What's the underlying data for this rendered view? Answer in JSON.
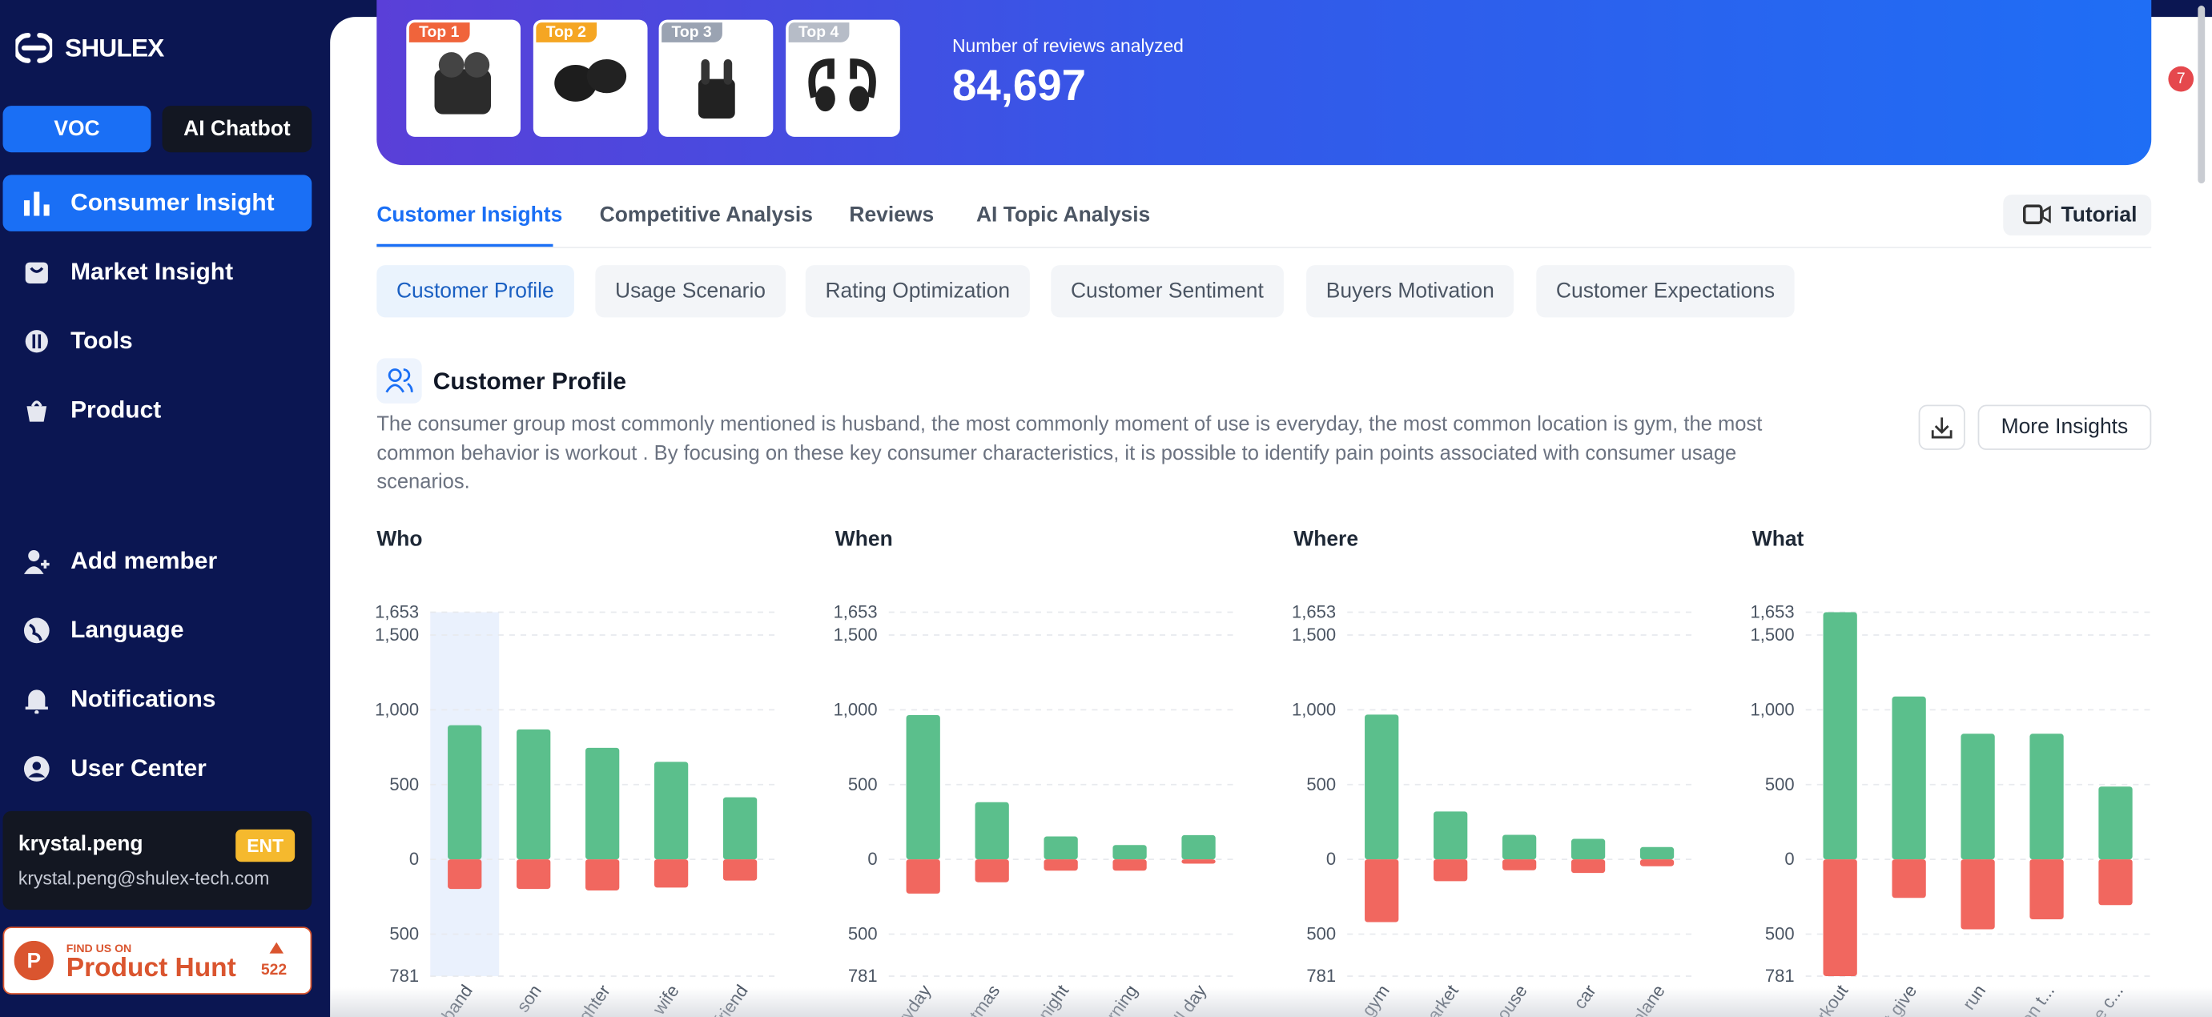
{
  "sidebar": {
    "logo": "SHULEX",
    "modes": [
      "VOC",
      "AI Chatbot"
    ],
    "nav": [
      "Consumer Insight",
      "Market Insight",
      "Tools",
      "Product"
    ],
    "bottom_nav": [
      "Add member",
      "Language",
      "Notifications",
      "User Center"
    ],
    "user": {
      "name": "krystal.peng",
      "plan": "ENT",
      "email": "krystal.peng@shulex-tech.com"
    },
    "product_hunt": {
      "caption": "FIND US ON",
      "name": "Product Hunt",
      "votes": 522
    }
  },
  "banner": {
    "tops": [
      "Top 1",
      "Top 2",
      "Top 3",
      "Top 4"
    ],
    "reviews_label": "Number of reviews analyzed",
    "reviews_count": "84,697"
  },
  "tabs": [
    "Customer Insights",
    "Competitive Analysis",
    "Reviews",
    "AI Topic Analysis"
  ],
  "tutorial": "Tutorial",
  "subtabs": [
    "Customer Profile",
    "Usage Scenario",
    "Rating Optimization",
    "Customer Sentiment",
    "Buyers Motivation",
    "Customer Expectations"
  ],
  "section": {
    "title": "Customer Profile",
    "description": "The consumer group most commonly mentioned is husband, the most commonly moment of use is everyday, the most common location is gym, the most common behavior is workout . By focusing on these key consumer characteristics, it is possible to identify pain points associated with consumer usage scenarios.",
    "more": "More Insights"
  },
  "notification_badge": 7,
  "chart_data": [
    {
      "type": "bar",
      "title": "Who",
      "categories": [
        "husband",
        "son",
        "daughter",
        "wife",
        "friend"
      ],
      "series": [
        {
          "color": "#5bbf8c",
          "values": [
            897,
            869,
            746,
            652,
            415
          ]
        },
        {
          "color": "#f1675f",
          "values": [
            -198,
            -198,
            -208,
            -189,
            -142
          ]
        }
      ],
      "ylim": [
        -781,
        1653
      ],
      "yticks": [
        {
          "value": -781,
          "label": "781"
        },
        {
          "value": -500,
          "label": "500"
        },
        0,
        500,
        {
          "value": 1000,
          "label": "1,000"
        },
        {
          "value": 1500,
          "label": "1,500"
        },
        {
          "value": 1653,
          "label": "1,653"
        }
      ],
      "grid": true
    },
    {
      "type": "bar",
      "title": "When",
      "categories": [
        "everyday",
        "christmas",
        "night",
        "morning",
        "all day"
      ],
      "series": [
        {
          "color": "#5bbf8c",
          "values": [
            965,
            382,
            153,
            96,
            162
          ]
        },
        {
          "color": "#f1675f",
          "values": [
            -229,
            -153,
            -76,
            -76,
            -29
          ]
        }
      ],
      "ylim": [
        -781,
        1653
      ],
      "yticks": [
        {
          "value": -781,
          "label": "781"
        },
        {
          "value": -500,
          "label": "500"
        },
        0,
        500,
        {
          "value": 1000,
          "label": "1,000"
        },
        {
          "value": 1500,
          "label": "1,500"
        },
        {
          "value": 1653,
          "label": "1,653"
        }
      ],
      "grid": true
    },
    {
      "type": "bar",
      "title": "Where",
      "categories": [
        "gym",
        "market",
        "house",
        "car",
        "plane"
      ],
      "series": [
        {
          "color": "#5bbf8c",
          "values": [
            968,
            320,
            164,
            137,
            82
          ]
        },
        {
          "color": "#f1675f",
          "values": [
            -420,
            -146,
            -73,
            -91,
            -46
          ]
        }
      ],
      "ylim": [
        -781,
        1653
      ],
      "yticks": [
        {
          "value": -781,
          "label": "781"
        },
        {
          "value": -500,
          "label": "500"
        },
        0,
        500,
        {
          "value": 1000,
          "label": "1,000"
        },
        {
          "value": 1500,
          "label": "1,500"
        },
        {
          "value": 1653,
          "label": "1,653"
        }
      ],
      "grid": true
    },
    {
      "type": "bar",
      "title": "What",
      "categories": [
        "workout",
        "gift give",
        "run",
        "listen t...",
        "phone c..."
      ],
      "series": [
        {
          "color": "#5bbf8c",
          "values": [
            1653,
            1089,
            840,
            840,
            487
          ]
        },
        {
          "color": "#f1675f",
          "values": [
            -781,
            -258,
            -468,
            -401,
            -306
          ]
        }
      ],
      "ylim": [
        -781,
        1653
      ],
      "yticks": [
        {
          "value": -781,
          "label": "781"
        },
        {
          "value": -500,
          "label": "500"
        },
        0,
        500,
        {
          "value": 1000,
          "label": "1,000"
        },
        {
          "value": 1500,
          "label": "1,500"
        },
        {
          "value": 1653,
          "label": "1,653"
        }
      ],
      "grid": true
    }
  ]
}
